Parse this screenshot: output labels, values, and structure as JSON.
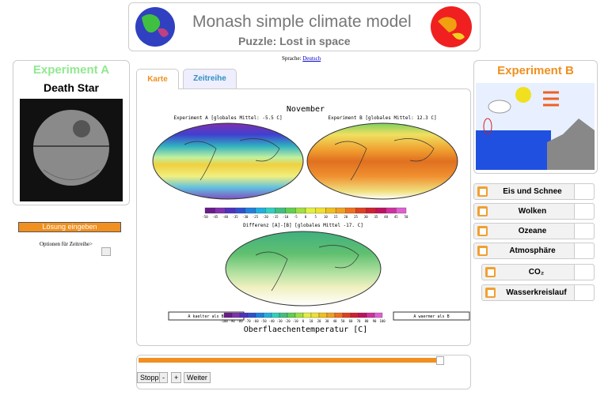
{
  "header": {
    "title": "Monash simple climate model",
    "subtitle": "Puzzle: Lost in space"
  },
  "language": {
    "label": "Sprache:",
    "link": "Deutsch"
  },
  "experiment_a": {
    "heading": "Experiment A",
    "name": "Death Star",
    "button": "Lösung eingeben",
    "options_label": "Optionen für Zeitreihe>"
  },
  "tabs": [
    "Karte",
    "Zeitreihe"
  ],
  "map": {
    "month": "November",
    "title_a": "Experiment A  [globales Mittel: -5.5 C]",
    "title_b": "Experiment B  [globales Mittel: 12.3 C]",
    "colorbar_ticks": [
      -50,
      -45,
      -40,
      -35,
      -30,
      -25,
      -20,
      -15,
      -10,
      -5,
      0,
      5,
      10,
      15,
      20,
      25,
      30,
      35,
      40,
      45,
      50
    ],
    "title_diff": "Differenz [A]-[B]  [globales Mittel -17. C]",
    "diff_ticks": [
      -100,
      -90,
      -80,
      -70,
      -60,
      -50,
      -40,
      -30,
      -20,
      -10,
      0,
      10,
      20,
      30,
      40,
      50,
      60,
      70,
      80,
      90,
      100
    ],
    "colder": "A kaelter als B",
    "warmer": "A waermer als B",
    "quantity": "Oberflaechentemperatur [C]"
  },
  "experiment_b": {
    "heading": "Experiment B",
    "toggles": [
      "Eis und Schnee",
      "Wolken",
      "Ozeane",
      "Atmosphäre",
      "CO₂",
      "Wasserkreislauf"
    ]
  },
  "controls": {
    "stop": "Stopp",
    "minus": "-",
    "plus": "+",
    "next": "Weiter"
  }
}
